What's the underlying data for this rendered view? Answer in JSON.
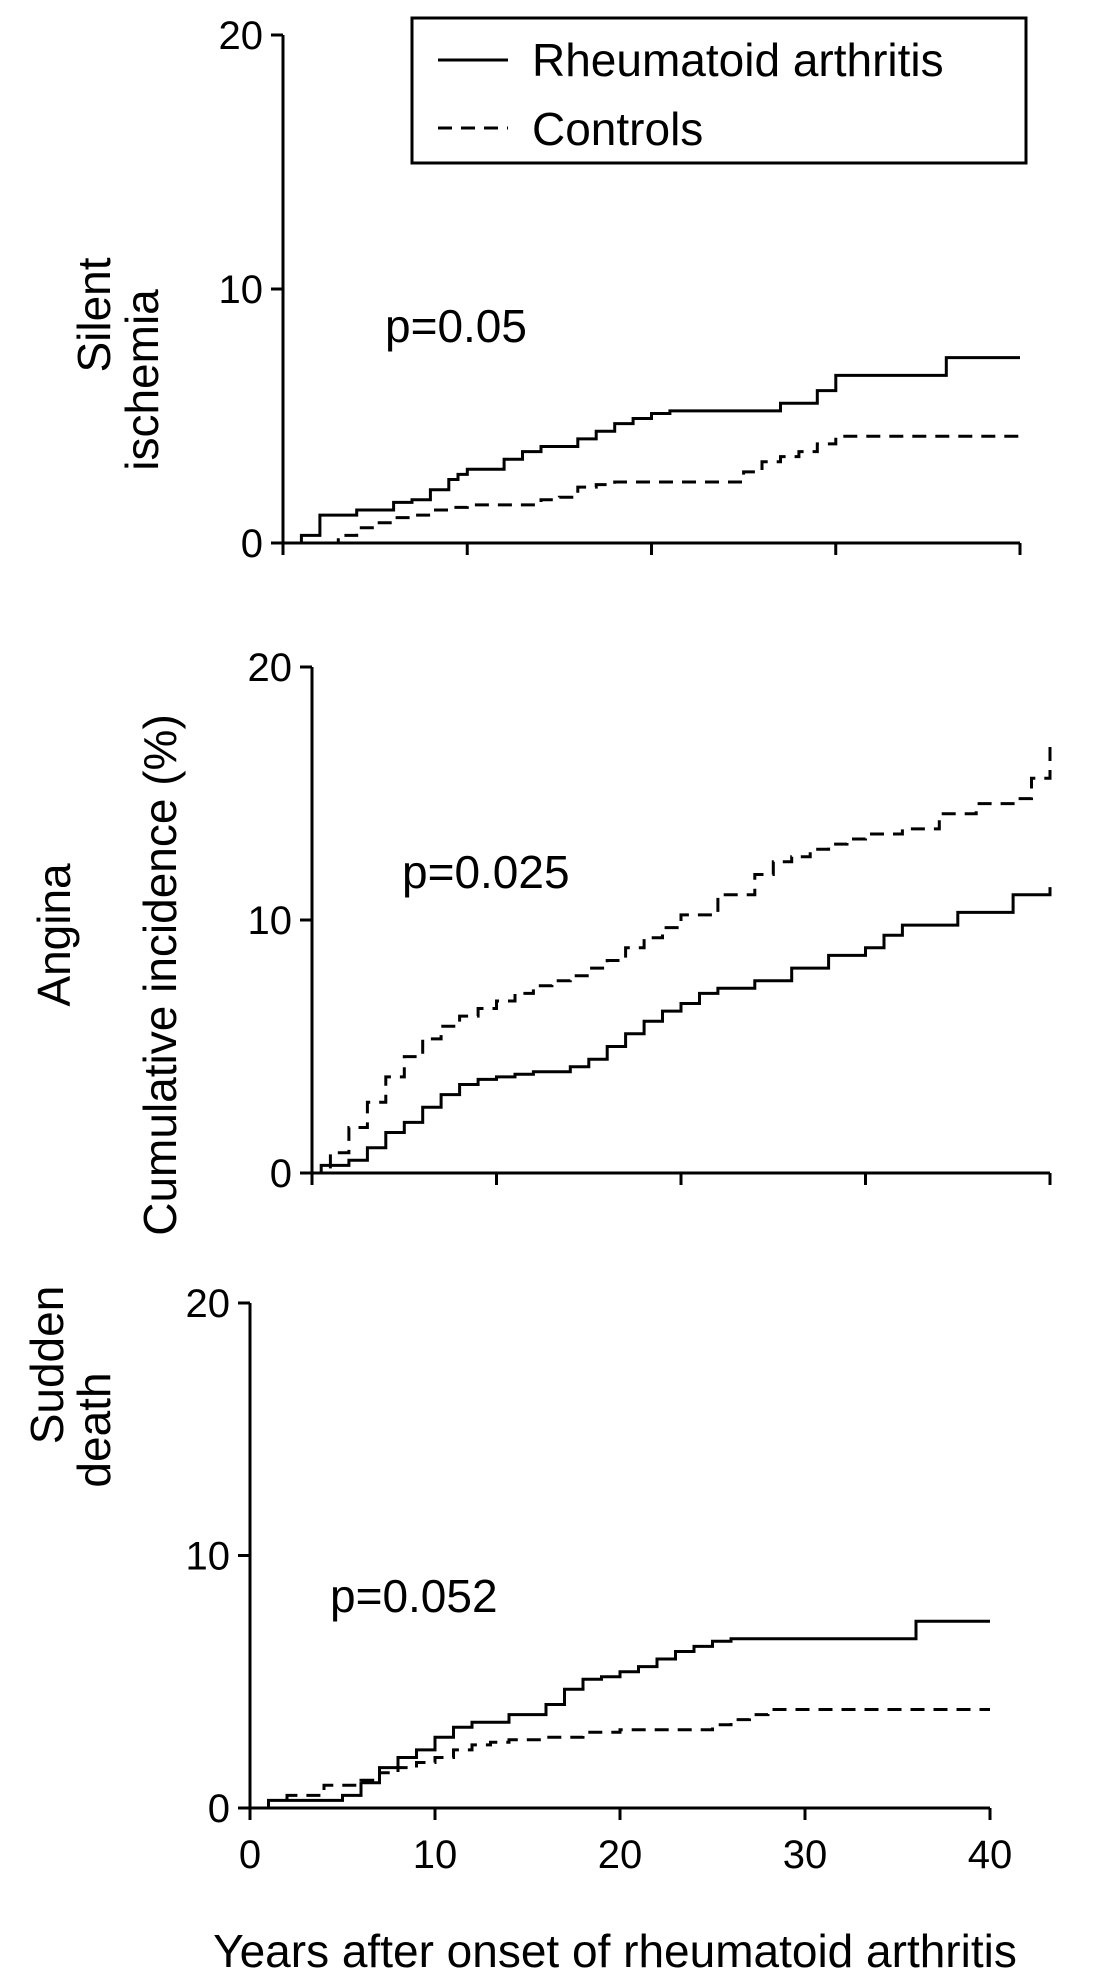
{
  "figure": {
    "shared_ylabel": "Cumulative incidence (%)",
    "shared_xlabel": "Years after onset of rheumatoid arthritis"
  },
  "legend": {
    "location": "top-right",
    "entries": [
      {
        "label": "Rheumatoid arthritis",
        "style": "solid"
      },
      {
        "label": "Controls",
        "style": "dashed"
      }
    ]
  },
  "chart_data": [
    {
      "type": "line",
      "step": true,
      "panel_label": [
        "Silent",
        "ischemia"
      ],
      "annotation": "p=0.05",
      "ylim": [
        0,
        20
      ],
      "yticks": [
        "0",
        "10",
        "20"
      ],
      "xlim": [
        0,
        40
      ],
      "show_xtick_labels": false,
      "series": [
        {
          "name": "Rheumatoid arthritis",
          "style": "solid",
          "x": [
            0,
            1,
            2,
            4,
            6,
            7,
            8,
            9,
            9.5,
            10,
            11,
            12,
            13,
            14,
            16,
            17,
            18,
            19,
            20,
            21,
            22,
            23,
            24,
            25,
            26,
            27,
            29,
            30,
            31,
            33,
            35,
            36,
            38,
            40
          ],
          "y": [
            0,
            0.3,
            1.1,
            1.3,
            1.6,
            1.7,
            2.1,
            2.5,
            2.7,
            2.9,
            2.9,
            3.3,
            3.6,
            3.8,
            4.1,
            4.4,
            4.7,
            4.9,
            5.1,
            5.2,
            5.2,
            5.2,
            5.2,
            5.2,
            5.2,
            5.5,
            6.0,
            6.6,
            6.6,
            6.6,
            6.6,
            7.3,
            7.3,
            7.3
          ]
        },
        {
          "name": "Controls",
          "style": "dashed",
          "x": [
            0,
            1,
            2,
            3,
            4,
            5,
            6,
            7,
            8,
            9,
            10,
            12,
            14,
            15,
            16,
            17,
            18,
            20,
            22,
            24,
            25,
            26,
            27,
            28,
            29,
            30,
            35,
            40
          ],
          "y": [
            0,
            0,
            0,
            0.3,
            0.6,
            0.8,
            1.0,
            1.1,
            1.3,
            1.4,
            1.5,
            1.5,
            1.7,
            1.8,
            2.2,
            2.3,
            2.4,
            2.4,
            2.4,
            2.4,
            2.8,
            3.2,
            3.4,
            3.6,
            3.9,
            4.2,
            4.2,
            4.2
          ]
        }
      ]
    },
    {
      "type": "line",
      "step": true,
      "panel_label": [
        "Angina"
      ],
      "annotation": "p=0.025",
      "ylim": [
        0,
        20
      ],
      "yticks": [
        "0",
        "10",
        "20"
      ],
      "xlim": [
        0,
        40
      ],
      "show_xtick_labels": false,
      "series": [
        {
          "name": "Rheumatoid arthritis",
          "style": "solid",
          "x": [
            0,
            0.5,
            2,
            3,
            4,
            5,
            6,
            7,
            8,
            9,
            10,
            11,
            12,
            14,
            15,
            16,
            17,
            18,
            19,
            20,
            21,
            22,
            24,
            26,
            28,
            30,
            31,
            32,
            35,
            38,
            40
          ],
          "y": [
            0,
            0.3,
            0.5,
            1.0,
            1.6,
            2.0,
            2.6,
            3.1,
            3.5,
            3.7,
            3.8,
            3.9,
            4.0,
            4.2,
            4.5,
            5.0,
            5.5,
            6.0,
            6.4,
            6.7,
            7.1,
            7.3,
            7.6,
            8.1,
            8.6,
            8.9,
            9.4,
            9.8,
            10.3,
            11.0,
            11.3
          ]
        },
        {
          "name": "Controls",
          "style": "dashed",
          "x": [
            0,
            1,
            2,
            3,
            4,
            5,
            6,
            7,
            8,
            9,
            10,
            11,
            12,
            13,
            14,
            15,
            16,
            17,
            18,
            19,
            20,
            22,
            24,
            25,
            26,
            27,
            28,
            29,
            30,
            32,
            34,
            36,
            38,
            39,
            40
          ],
          "y": [
            0,
            0.8,
            1.8,
            2.8,
            3.8,
            4.6,
            5.3,
            5.8,
            6.2,
            6.5,
            6.8,
            7.1,
            7.4,
            7.6,
            7.8,
            8.1,
            8.4,
            8.9,
            9.3,
            9.7,
            10.2,
            11.0,
            11.8,
            12.3,
            12.5,
            12.8,
            13.0,
            13.2,
            13.4,
            13.6,
            14.2,
            14.6,
            14.8,
            15.6,
            16.9
          ]
        }
      ]
    },
    {
      "type": "line",
      "step": true,
      "panel_label": [
        "Sudden",
        "death"
      ],
      "annotation": "p=0.052",
      "ylim": [
        0,
        20
      ],
      "yticks": [
        "0",
        "10",
        "20"
      ],
      "xlim": [
        0,
        40
      ],
      "xticks": [
        "0",
        "10",
        "20",
        "30",
        "40"
      ],
      "show_xtick_labels": true,
      "series": [
        {
          "name": "Rheumatoid arthritis",
          "style": "solid",
          "x": [
            0,
            1,
            5,
            6,
            7,
            8,
            9,
            10,
            11,
            12,
            14,
            16,
            17,
            18,
            19,
            20,
            21,
            22,
            23,
            24,
            25,
            26,
            27,
            30,
            33,
            35,
            36,
            38,
            40
          ],
          "y": [
            0,
            0.3,
            0.5,
            1.0,
            1.6,
            2.0,
            2.3,
            2.8,
            3.2,
            3.4,
            3.7,
            4.1,
            4.7,
            5.1,
            5.2,
            5.4,
            5.6,
            5.9,
            6.2,
            6.4,
            6.6,
            6.7,
            6.7,
            6.7,
            6.7,
            6.7,
            7.4,
            7.4,
            7.4
          ]
        },
        {
          "name": "Controls",
          "style": "dashed",
          "x": [
            0,
            2,
            4,
            6,
            7,
            8,
            9,
            10,
            11,
            12,
            13,
            14,
            16,
            18,
            20,
            22,
            24,
            25,
            26,
            27,
            28,
            30,
            35,
            40
          ],
          "y": [
            0,
            0.5,
            0.9,
            1.1,
            1.4,
            1.6,
            1.8,
            2.0,
            2.3,
            2.5,
            2.6,
            2.7,
            2.8,
            3.0,
            3.1,
            3.1,
            3.1,
            3.3,
            3.5,
            3.7,
            3.9,
            3.9,
            3.9,
            3.9
          ]
        }
      ]
    }
  ]
}
